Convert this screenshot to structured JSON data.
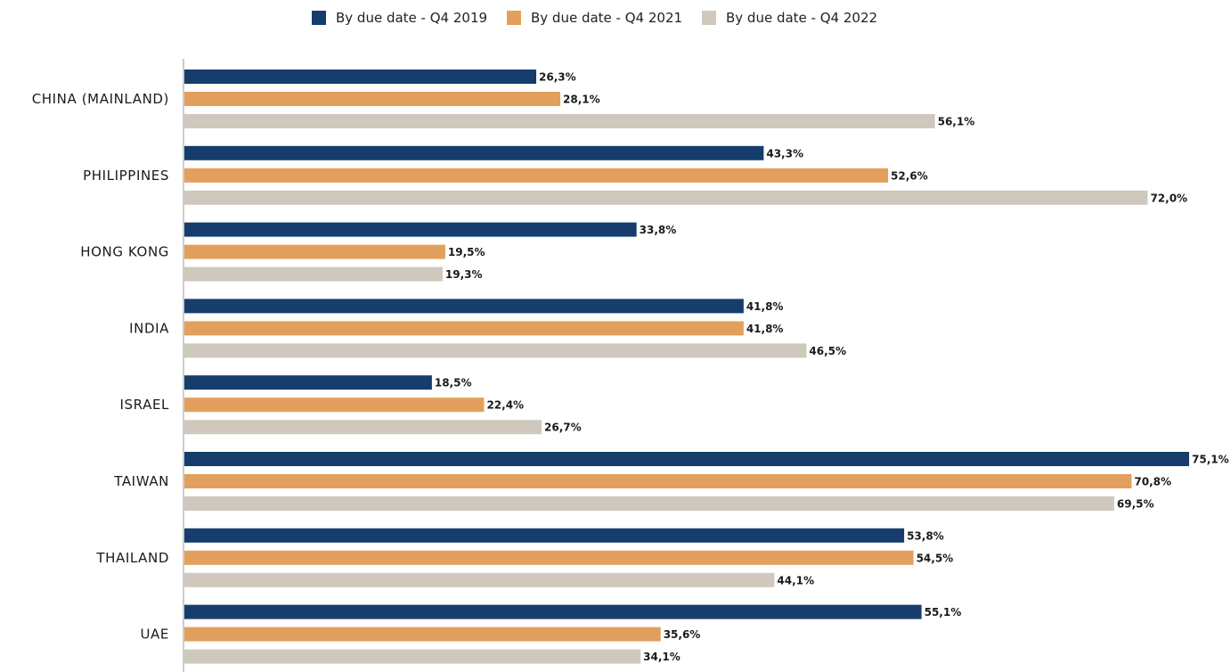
{
  "chart_data": {
    "type": "bar",
    "orientation": "horizontal",
    "categories": [
      "CHINA (MAINLAND)",
      "PHILIPPINES",
      "HONG KONG",
      "INDIA",
      "ISRAEL",
      "TAIWAN",
      "THAILAND",
      "UAE"
    ],
    "series": [
      {
        "name": "By due date - Q4 2019",
        "color": "#163d6b",
        "values": [
          26.3,
          43.3,
          33.8,
          41.8,
          18.5,
          75.1,
          53.8,
          55.1
        ],
        "labels": [
          "26,3%",
          "43,3%",
          "33,8%",
          "41,8%",
          "18,5%",
          "75,1%",
          "53,8%",
          "55,1%"
        ]
      },
      {
        "name": "By due date - Q4 2021",
        "color": "#e3a05c",
        "values": [
          28.1,
          52.6,
          19.5,
          41.8,
          22.4,
          70.8,
          54.5,
          35.6
        ],
        "labels": [
          "28,1%",
          "52,6%",
          "19,5%",
          "41,8%",
          "22,4%",
          "70,8%",
          "54,5%",
          "35,6%"
        ]
      },
      {
        "name": "By due date - Q4 2022",
        "color": "#cfc8bd",
        "values": [
          56.1,
          72.0,
          19.3,
          46.5,
          26.7,
          69.5,
          44.1,
          34.1
        ],
        "labels": [
          "56,1%",
          "72,0%",
          "19,3%",
          "46,5%",
          "26,7%",
          "69,5%",
          "44,1%",
          "34,1%"
        ]
      }
    ],
    "legend_position": "top-center",
    "grid": false,
    "axis_color": "#cccccc",
    "xlim": [
      0,
      75.1
    ]
  }
}
